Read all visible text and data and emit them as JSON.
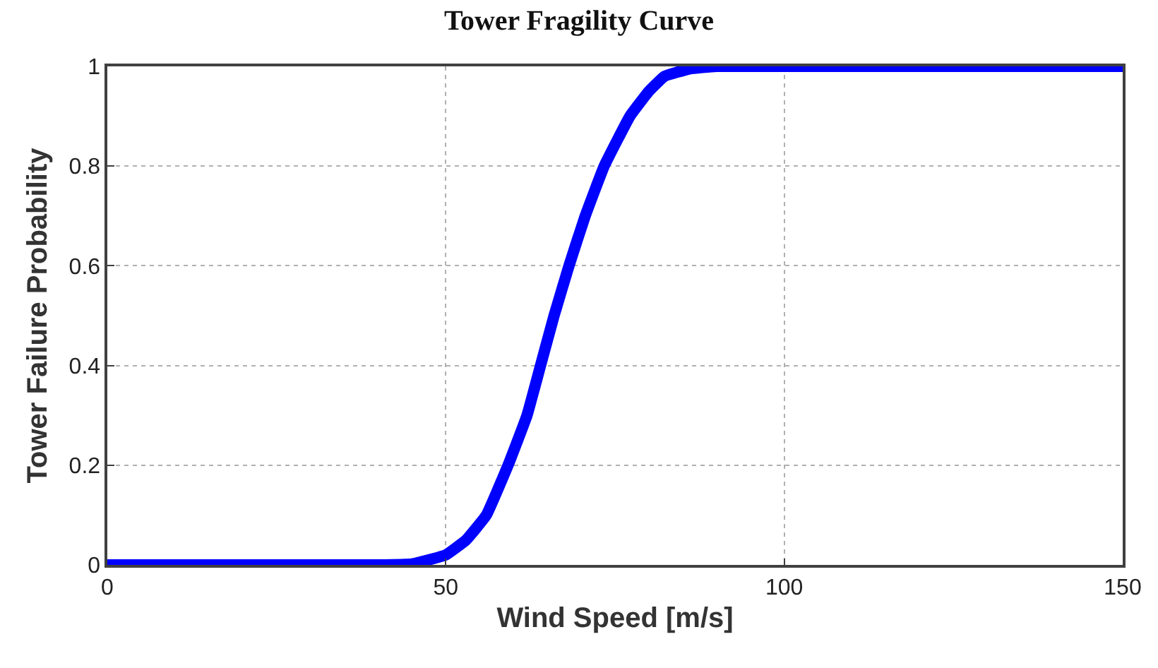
{
  "chart_data": {
    "type": "line",
    "title": "Tower Fragility Curve",
    "xlabel": "Wind Speed [m/s]",
    "ylabel": "Tower Failure Probability",
    "x": [
      0,
      40,
      45,
      50,
      53,
      56,
      59.2,
      62,
      64,
      66,
      68.2,
      70.6,
      73.4,
      77.2,
      80,
      82.3,
      86,
      90,
      150
    ],
    "series": [
      {
        "color": "#0000ff",
        "values": [
          0,
          0,
          0.002,
          0.02,
          0.05,
          0.1,
          0.2,
          0.3,
          0.4,
          0.5,
          0.6,
          0.7,
          0.8,
          0.9,
          0.95,
          0.98,
          0.995,
          1,
          1
        ]
      }
    ],
    "xlim": [
      0,
      150
    ],
    "xticks": [
      0,
      50,
      100,
      150
    ],
    "ylim": [
      0,
      1
    ],
    "yticks": [
      0,
      0.2,
      0.4,
      0.6,
      0.8,
      1
    ],
    "grid": true,
    "line_style": "solid"
  }
}
